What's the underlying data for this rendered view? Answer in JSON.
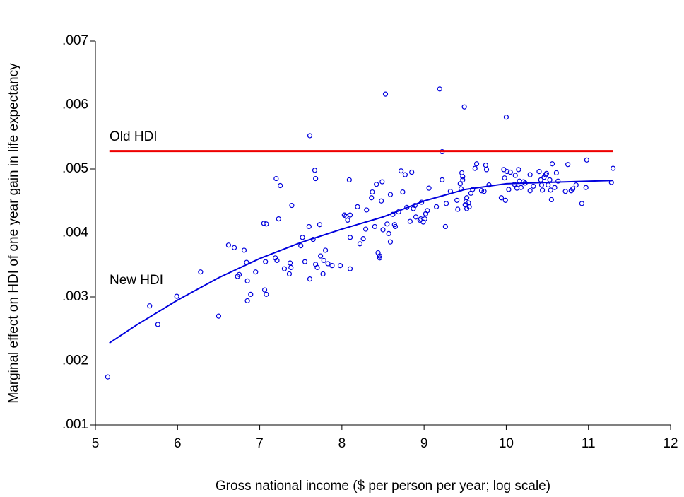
{
  "chart_data": {
    "type": "scatter",
    "x_label": "Gross national income ($ per person per year; log scale)",
    "y_label": "Marginal effect on HDI of one year gain in life expectancy",
    "xlim": [
      5,
      12
    ],
    "xticks": [
      5,
      6,
      7,
      8,
      9,
      10,
      11,
      12
    ],
    "ylim": [
      0.001,
      0.007
    ],
    "yticks": [
      {
        "value": 0.001,
        "label": ".001"
      },
      {
        "value": 0.002,
        "label": ".002"
      },
      {
        "value": 0.003,
        "label": ".003"
      },
      {
        "value": 0.004,
        "label": ".004"
      },
      {
        "value": 0.005,
        "label": ".005"
      },
      {
        "value": 0.006,
        "label": ".006"
      },
      {
        "value": 0.007,
        "label": ".007"
      }
    ],
    "grid": false,
    "series": [
      {
        "type": "scatter",
        "color": "#0000dd",
        "x": [
          5.15,
          5.66,
          5.76,
          5.99,
          6.28,
          6.5,
          6.62,
          6.69,
          6.73,
          6.75,
          6.81,
          6.84,
          6.85,
          6.85,
          6.89,
          6.95,
          7.05,
          7.06,
          7.08,
          7.08,
          7.07,
          7.19,
          7.2,
          7.21,
          7.23,
          7.25,
          7.3,
          7.36,
          7.37,
          7.38,
          7.39,
          7.5,
          7.52,
          7.55,
          7.6,
          7.61,
          7.61,
          7.65,
          7.67,
          7.68,
          7.68,
          7.7,
          7.73,
          7.74,
          7.77,
          7.78,
          7.8,
          7.83,
          7.88,
          7.98,
          8.03,
          8.05,
          8.07,
          8.09,
          8.1,
          8.1,
          8.1,
          8.19,
          8.22,
          8.26,
          8.29,
          8.3,
          8.36,
          8.37,
          8.4,
          8.42,
          8.44,
          8.46,
          8.46,
          8.48,
          8.49,
          8.5,
          8.53,
          8.55,
          8.57,
          8.59,
          8.59,
          8.62,
          8.64,
          8.65,
          8.69,
          8.72,
          8.74,
          8.77,
          8.79,
          8.83,
          8.85,
          8.87,
          8.89,
          8.9,
          8.95,
          8.96,
          8.97,
          8.99,
          9.01,
          9.02,
          9.04,
          9.06,
          9.15,
          9.19,
          9.22,
          9.22,
          9.26,
          9.27,
          9.32,
          9.4,
          9.41,
          9.44,
          9.45,
          9.46,
          9.47,
          9.47,
          9.49,
          9.5,
          9.51,
          9.52,
          9.52,
          9.54,
          9.55,
          9.57,
          9.59,
          9.62,
          9.64,
          9.7,
          9.73,
          9.75,
          9.76,
          9.79,
          9.94,
          9.97,
          9.98,
          9.99,
          10.0,
          10.01,
          10.03,
          10.05,
          10.1,
          10.11,
          10.13,
          10.15,
          10.16,
          10.18,
          10.21,
          10.23,
          10.29,
          10.29,
          10.33,
          10.4,
          10.42,
          10.43,
          10.44,
          10.46,
          10.48,
          10.49,
          10.51,
          10.53,
          10.54,
          10.55,
          10.56,
          10.59,
          10.61,
          10.63,
          10.72,
          10.75,
          10.79,
          10.81,
          10.85,
          10.92,
          10.97,
          10.98,
          11.28,
          11.3
        ],
        "values": [
          0.00175,
          0.00286,
          0.00257,
          0.00301,
          0.00339,
          0.0027,
          0.00381,
          0.00377,
          0.00332,
          0.00335,
          0.00373,
          0.00354,
          0.00294,
          0.00325,
          0.00304,
          0.00339,
          0.00415,
          0.00311,
          0.00414,
          0.00304,
          0.00355,
          0.00361,
          0.00485,
          0.00357,
          0.00422,
          0.00474,
          0.00344,
          0.00336,
          0.00353,
          0.00346,
          0.00443,
          0.0038,
          0.00393,
          0.00355,
          0.0041,
          0.00552,
          0.00328,
          0.0039,
          0.00498,
          0.00485,
          0.00351,
          0.00346,
          0.00413,
          0.00364,
          0.00336,
          0.00357,
          0.00373,
          0.00352,
          0.00349,
          0.00349,
          0.00428,
          0.00426,
          0.0042,
          0.00483,
          0.00428,
          0.00344,
          0.00393,
          0.00441,
          0.00383,
          0.00391,
          0.00406,
          0.00436,
          0.00455,
          0.00464,
          0.0041,
          0.00476,
          0.00369,
          0.00364,
          0.00361,
          0.0045,
          0.0048,
          0.00405,
          0.00617,
          0.00414,
          0.00399,
          0.00386,
          0.0046,
          0.00429,
          0.00413,
          0.0041,
          0.00433,
          0.00497,
          0.00464,
          0.00491,
          0.0044,
          0.00418,
          0.00495,
          0.00438,
          0.00443,
          0.00425,
          0.0042,
          0.00422,
          0.00448,
          0.00417,
          0.00422,
          0.0043,
          0.00435,
          0.0047,
          0.00441,
          0.00625,
          0.00483,
          0.00527,
          0.0041,
          0.00446,
          0.00465,
          0.00451,
          0.00437,
          0.00477,
          0.00469,
          0.00494,
          0.00488,
          0.00483,
          0.00597,
          0.00444,
          0.00449,
          0.00455,
          0.00438,
          0.00447,
          0.00441,
          0.00462,
          0.00468,
          0.00501,
          0.00508,
          0.00466,
          0.00465,
          0.00506,
          0.00499,
          0.00475,
          0.00455,
          0.00499,
          0.00486,
          0.00451,
          0.00581,
          0.00496,
          0.00468,
          0.00495,
          0.00476,
          0.0049,
          0.0047,
          0.00499,
          0.00481,
          0.00471,
          0.0048,
          0.00478,
          0.00491,
          0.00466,
          0.00473,
          0.00496,
          0.00483,
          0.00475,
          0.00467,
          0.00487,
          0.00491,
          0.00493,
          0.00475,
          0.00483,
          0.00467,
          0.00452,
          0.00508,
          0.00471,
          0.00494,
          0.00481,
          0.00465,
          0.00507,
          0.00466,
          0.00469,
          0.00475,
          0.00446,
          0.00471,
          0.00514,
          0.00479,
          0.00501
        ]
      },
      {
        "type": "line",
        "name": "Old HDI",
        "color": "#ee0000",
        "x": [
          5.17,
          11.3
        ],
        "values": [
          0.00528,
          0.00528
        ]
      },
      {
        "type": "line",
        "name": "New HDI",
        "color": "#0000dd",
        "x": [
          5.17,
          5.5,
          6,
          6.5,
          7,
          7.5,
          8,
          8.5,
          9,
          9.5,
          10,
          10.5,
          11,
          11.3
        ],
        "values": [
          0.00228,
          0.00256,
          0.00295,
          0.0033,
          0.0036,
          0.00385,
          0.00406,
          0.00425,
          0.0045,
          0.00468,
          0.00477,
          0.00479,
          0.00481,
          0.00482
        ]
      }
    ]
  }
}
